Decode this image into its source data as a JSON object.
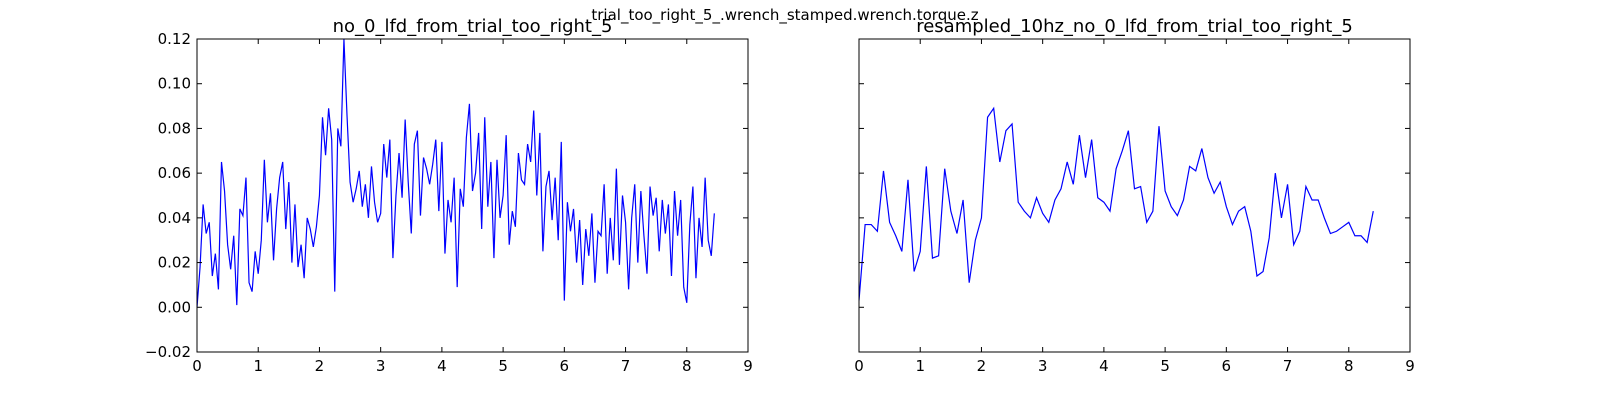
{
  "title": "trial_too_right_5_.wrench_stamped.wrench.torque.z",
  "chart_data": [
    {
      "type": "line",
      "title": "no_0_lfd_from_trial_too_right_5",
      "color": "#0000ff",
      "x": [
        0,
        0.05,
        0.1,
        0.15,
        0.2,
        0.25,
        0.3,
        0.35,
        0.4,
        0.45,
        0.5,
        0.55,
        0.6,
        0.65,
        0.7,
        0.75,
        0.8,
        0.85,
        0.9,
        0.95,
        1,
        1.05,
        1.1,
        1.15,
        1.2,
        1.25,
        1.3,
        1.35,
        1.4,
        1.45,
        1.5,
        1.55,
        1.6,
        1.65,
        1.7,
        1.75,
        1.8,
        1.85,
        1.9,
        1.95,
        2,
        2.05,
        2.1,
        2.15,
        2.2,
        2.25,
        2.3,
        2.35,
        2.4,
        2.45,
        2.5,
        2.55,
        2.6,
        2.65,
        2.7,
        2.75,
        2.8,
        2.85,
        2.9,
        2.95,
        3,
        3.05,
        3.1,
        3.15,
        3.2,
        3.25,
        3.3,
        3.35,
        3.4,
        3.45,
        3.5,
        3.55,
        3.6,
        3.65,
        3.7,
        3.75,
        3.8,
        3.85,
        3.9,
        3.95,
        4,
        4.05,
        4.1,
        4.15,
        4.2,
        4.25,
        4.3,
        4.35,
        4.4,
        4.45,
        4.5,
        4.55,
        4.6,
        4.65,
        4.7,
        4.75,
        4.8,
        4.85,
        4.9,
        4.95,
        5,
        5.05,
        5.1,
        5.15,
        5.2,
        5.25,
        5.3,
        5.35,
        5.4,
        5.45,
        5.5,
        5.55,
        5.6,
        5.65,
        5.7,
        5.75,
        5.8,
        5.85,
        5.9,
        5.95,
        6,
        6.05,
        6.1,
        6.15,
        6.2,
        6.25,
        6.3,
        6.35,
        6.4,
        6.45,
        6.5,
        6.55,
        6.6,
        6.65,
        6.7,
        6.75,
        6.8,
        6.85,
        6.9,
        6.95,
        7,
        7.05,
        7.1,
        7.15,
        7.2,
        7.25,
        7.3,
        7.35,
        7.4,
        7.45,
        7.5,
        7.55,
        7.6,
        7.65,
        7.7,
        7.75,
        7.8,
        7.85,
        7.9,
        7.95,
        8,
        8.05,
        8.1,
        8.15,
        8.2,
        8.25,
        8.3,
        8.35,
        8.4,
        8.45
      ],
      "values": [
        0.0,
        0.018,
        0.046,
        0.033,
        0.038,
        0.014,
        0.024,
        0.008,
        0.065,
        0.052,
        0.028,
        0.017,
        0.032,
        0.001,
        0.044,
        0.041,
        0.058,
        0.011,
        0.007,
        0.025,
        0.015,
        0.03,
        0.066,
        0.038,
        0.051,
        0.021,
        0.044,
        0.058,
        0.065,
        0.035,
        0.056,
        0.02,
        0.046,
        0.018,
        0.028,
        0.013,
        0.04,
        0.035,
        0.027,
        0.036,
        0.05,
        0.085,
        0.068,
        0.089,
        0.075,
        0.007,
        0.08,
        0.072,
        0.12,
        0.086,
        0.056,
        0.047,
        0.053,
        0.061,
        0.045,
        0.055,
        0.04,
        0.063,
        0.047,
        0.038,
        0.042,
        0.073,
        0.058,
        0.075,
        0.022,
        0.05,
        0.069,
        0.049,
        0.084,
        0.056,
        0.033,
        0.073,
        0.079,
        0.041,
        0.067,
        0.062,
        0.055,
        0.064,
        0.075,
        0.043,
        0.074,
        0.024,
        0.048,
        0.038,
        0.058,
        0.009,
        0.053,
        0.045,
        0.076,
        0.091,
        0.052,
        0.06,
        0.078,
        0.035,
        0.085,
        0.045,
        0.065,
        0.022,
        0.066,
        0.04,
        0.05,
        0.077,
        0.028,
        0.043,
        0.036,
        0.069,
        0.057,
        0.055,
        0.073,
        0.065,
        0.088,
        0.05,
        0.078,
        0.025,
        0.054,
        0.061,
        0.039,
        0.058,
        0.03,
        0.074,
        0.003,
        0.047,
        0.034,
        0.044,
        0.02,
        0.039,
        0.01,
        0.035,
        0.023,
        0.042,
        0.011,
        0.034,
        0.032,
        0.055,
        0.015,
        0.04,
        0.021,
        0.062,
        0.019,
        0.05,
        0.038,
        0.008,
        0.04,
        0.055,
        0.02,
        0.052,
        0.032,
        0.015,
        0.054,
        0.041,
        0.049,
        0.025,
        0.048,
        0.033,
        0.046,
        0.014,
        0.052,
        0.032,
        0.048,
        0.009,
        0.002,
        0.037,
        0.054,
        0.013,
        0.04,
        0.027,
        0.058,
        0.03,
        0.023,
        0.042
      ],
      "xlim": [
        0,
        9
      ],
      "xticks": [
        0,
        1,
        2,
        3,
        4,
        5,
        6,
        7,
        8,
        9
      ],
      "ylim": [
        -0.02,
        0.12
      ],
      "yticks": [
        {
          "value": -0.02,
          "label": "−0.02"
        },
        {
          "value": 0,
          "label": "0.00"
        },
        {
          "value": 0.02,
          "label": "0.02"
        },
        {
          "value": 0.04,
          "label": "0.04"
        },
        {
          "value": 0.06,
          "label": "0.06"
        },
        {
          "value": 0.08,
          "label": "0.08"
        },
        {
          "value": 0.1,
          "label": "0.10"
        },
        {
          "value": 0.12,
          "label": "0.12"
        }
      ],
      "ytick_labels": true
    },
    {
      "type": "line",
      "title": "resampled_10hz_no_0_lfd_from_trial_too_right_5",
      "color": "#0000ff",
      "x": [
        0,
        0.1,
        0.2,
        0.3,
        0.4,
        0.5,
        0.6,
        0.7,
        0.8,
        0.9,
        1,
        1.1,
        1.2,
        1.3,
        1.4,
        1.5,
        1.6,
        1.7,
        1.8,
        1.9,
        2,
        2.1,
        2.2,
        2.3,
        2.4,
        2.5,
        2.6,
        2.7,
        2.8,
        2.9,
        3,
        3.1,
        3.2,
        3.3,
        3.4,
        3.5,
        3.6,
        3.7,
        3.8,
        3.9,
        4,
        4.1,
        4.2,
        4.3,
        4.4,
        4.5,
        4.6,
        4.7,
        4.8,
        4.9,
        5,
        5.1,
        5.2,
        5.3,
        5.4,
        5.5,
        5.6,
        5.7,
        5.8,
        5.9,
        6,
        6.1,
        6.2,
        6.3,
        6.4,
        6.5,
        6.6,
        6.7,
        6.8,
        6.9,
        7,
        7.1,
        7.2,
        7.3,
        7.4,
        7.5,
        7.6,
        7.7,
        7.8,
        7.9,
        8,
        8.1,
        8.2,
        8.3,
        8.4
      ],
      "values": [
        0.003,
        0.037,
        0.037,
        0.034,
        0.061,
        0.038,
        0.032,
        0.025,
        0.057,
        0.016,
        0.025,
        0.063,
        0.022,
        0.023,
        0.062,
        0.043,
        0.033,
        0.048,
        0.011,
        0.03,
        0.04,
        0.085,
        0.089,
        0.065,
        0.079,
        0.082,
        0.047,
        0.043,
        0.04,
        0.049,
        0.042,
        0.038,
        0.048,
        0.053,
        0.065,
        0.055,
        0.077,
        0.058,
        0.075,
        0.049,
        0.047,
        0.043,
        0.062,
        0.07,
        0.079,
        0.053,
        0.054,
        0.038,
        0.043,
        0.081,
        0.052,
        0.045,
        0.041,
        0.048,
        0.063,
        0.061,
        0.071,
        0.058,
        0.051,
        0.056,
        0.045,
        0.037,
        0.043,
        0.045,
        0.034,
        0.014,
        0.016,
        0.031,
        0.06,
        0.04,
        0.055,
        0.028,
        0.034,
        0.054,
        0.048,
        0.048,
        0.04,
        0.033,
        0.034,
        0.036,
        0.038,
        0.032,
        0.032,
        0.029,
        0.043
      ],
      "xlim": [
        0,
        9
      ],
      "xticks": [
        0,
        1,
        2,
        3,
        4,
        5,
        6,
        7,
        8,
        9
      ],
      "ylim": [
        -0.02,
        0.12
      ],
      "yticks": [
        -0.02,
        0,
        0.02,
        0.04,
        0.06,
        0.08,
        0.1,
        0.12
      ],
      "ytick_labels": false
    }
  ]
}
